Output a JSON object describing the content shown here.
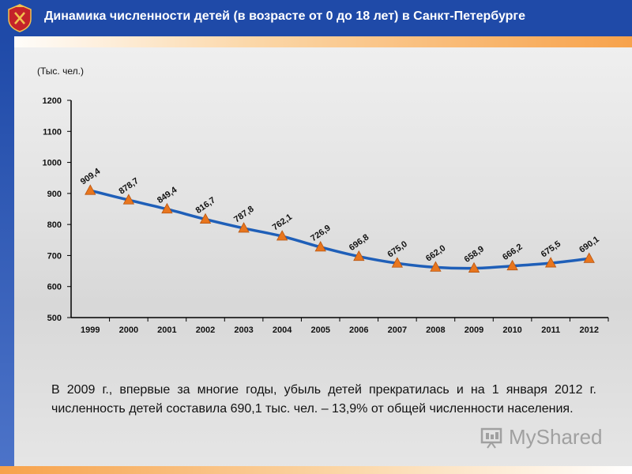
{
  "header": {
    "title": "Динамика численности детей (в возрасте от 0 до 18 лет) в Санкт-Петербурге",
    "emblem_icon": "city-coat-of-arms-icon"
  },
  "chart_data": {
    "type": "line",
    "categories": [
      "1999",
      "2000",
      "2001",
      "2002",
      "2003",
      "2004",
      "2005",
      "2006",
      "2007",
      "2008",
      "2009",
      "2010",
      "2011",
      "2012"
    ],
    "values": [
      909.4,
      878.7,
      849.4,
      816.7,
      787.8,
      762.1,
      726.9,
      696.8,
      675.0,
      662.0,
      658.9,
      666.2,
      675.5,
      690.1
    ],
    "data_labels": [
      "909,4",
      "878,7",
      "849,4",
      "816,7",
      "787,8",
      "762,1",
      "726,9",
      "696,8",
      "675,0",
      "662,0",
      "658,9",
      "666,2",
      "675,5",
      "690,1"
    ],
    "y_ticks": [
      500,
      600,
      700,
      800,
      900,
      1000,
      1100,
      1200
    ],
    "ylim": [
      500,
      1200
    ],
    "ylabel": "(Тыс. чел.)",
    "line_color": "#1f5fb8",
    "marker_color": "#e8761e",
    "marker_shape": "triangle"
  },
  "caption": "В 2009 г., впервые за многие годы, убыль детей прекратилась и на 1 января 2012 г. численность детей составила 690,1 тыс. чел. – 13,9% от общей численности населения.",
  "watermark": {
    "text": "MyShared",
    "icon": "presentation-board-icon"
  }
}
